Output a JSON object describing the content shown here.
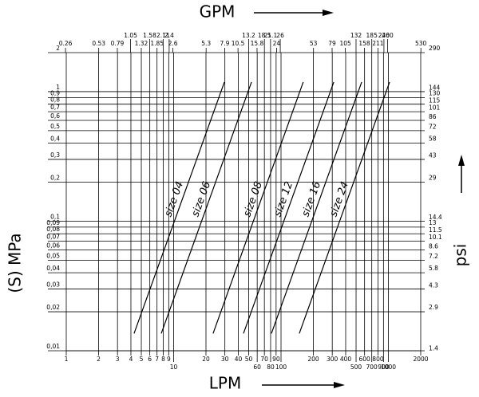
{
  "chart_data": {
    "type": "line",
    "x_title": "LPM",
    "x2_title": "GPM",
    "y_title": "(S) MPa",
    "y2_title": "psi",
    "xscale": "log",
    "yscale": "log",
    "xlim": [
      1,
      2000
    ],
    "ylim": [
      0.01,
      2
    ],
    "x2lim": [
      0.2642,
      528.3
    ],
    "y2lim": [
      1.45,
      290
    ],
    "xticks": [
      1,
      2,
      3,
      4,
      5,
      6,
      7,
      8,
      9,
      10,
      20,
      30,
      40,
      50,
      60,
      70,
      80,
      90,
      100,
      200,
      300,
      400,
      500,
      600,
      700,
      800,
      900,
      1000,
      2000
    ],
    "x2ticks": [
      0.26,
      0.53,
      0.79,
      1.05,
      1.32,
      1.58,
      1.85,
      2.11,
      2.4,
      2.6,
      5.3,
      7.9,
      10.5,
      13.2,
      15.8,
      18.5,
      21.1,
      24,
      26,
      53,
      79,
      105,
      132,
      158,
      185,
      211,
      240,
      260,
      530
    ],
    "yticks": [
      2,
      1,
      {
        "value": 0.9,
        "label": "0,9"
      },
      {
        "value": 0.8,
        "label": "0,8"
      },
      {
        "value": 0.7,
        "label": "0,7"
      },
      {
        "value": 0.6,
        "label": "0,6"
      },
      {
        "value": 0.5,
        "label": "0,5"
      },
      {
        "value": 0.4,
        "label": "0,4"
      },
      {
        "value": 0.3,
        "label": "0,3"
      },
      {
        "value": 0.2,
        "label": "0,2"
      },
      {
        "value": 0.1,
        "label": "0,1"
      },
      {
        "value": 0.09,
        "label": "0,09"
      },
      {
        "value": 0.08,
        "label": "0,08"
      },
      {
        "value": 0.07,
        "label": "0,07"
      },
      {
        "value": 0.06,
        "label": "0,06"
      },
      {
        "value": 0.05,
        "label": "0,05"
      },
      {
        "value": 0.04,
        "label": "0,04"
      },
      {
        "value": 0.03,
        "label": "0,03"
      },
      {
        "value": 0.02,
        "label": "0,02"
      },
      {
        "value": 0.01,
        "label": "0,01"
      }
    ],
    "y2ticks": [
      290,
      144,
      130,
      115,
      101,
      86,
      72,
      58,
      43,
      29,
      14.4,
      13,
      11.5,
      10.1,
      8.6,
      7.2,
      5.8,
      4.3,
      2.9,
      1.4
    ],
    "grid": true,
    "color": "#000000",
    "series": [
      {
        "name": "size 04",
        "x": [
          4.28,
          29.7
        ],
        "values": [
          0.0136,
          1.185
        ]
      },
      {
        "name": "size 06",
        "x": [
          7.67,
          53.1
        ],
        "values": [
          0.0136,
          1.185
        ]
      },
      {
        "name": "size 08",
        "x": [
          23.3,
          161
        ],
        "values": [
          0.0136,
          1.185
        ]
      },
      {
        "name": "size 12",
        "x": [
          44.7,
          310
        ],
        "values": [
          0.0136,
          1.185
        ]
      },
      {
        "name": "size 16",
        "x": [
          81.4,
          564
        ],
        "values": [
          0.0136,
          1.185
        ]
      },
      {
        "name": "size 24",
        "x": [
          148,
          1026
        ],
        "values": [
          0.0136,
          1.185
        ]
      }
    ]
  }
}
